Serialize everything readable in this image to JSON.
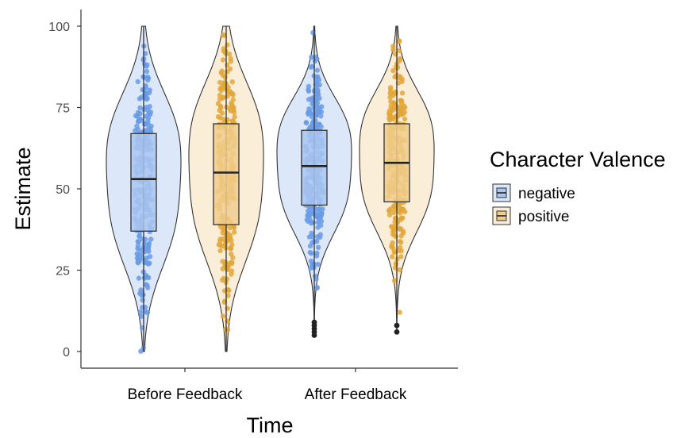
{
  "chart_data": {
    "type": "violin",
    "xlabel": "Time",
    "ylabel": "Estimate",
    "categories": [
      "Before Feedback",
      "After Feedback"
    ],
    "ylim": [
      0,
      100
    ],
    "yticks": [
      0,
      25,
      50,
      75,
      100
    ],
    "legend": {
      "title": "Character Valence",
      "position": "right",
      "entries": [
        "negative",
        "positive"
      ]
    },
    "series": [
      {
        "name": "negative",
        "color": "#6a9be6",
        "fill": "#dce8fa",
        "box_fill": "#a9c6f0",
        "groups": [
          {
            "category": "Before Feedback",
            "min": 0,
            "q1": 37,
            "median": 53,
            "q3": 67,
            "max": 100,
            "outliers": []
          },
          {
            "category": "After Feedback",
            "min": 10,
            "q1": 45,
            "median": 57,
            "q3": 68,
            "max": 100,
            "outliers": [
              5,
              6,
              7,
              8,
              9
            ]
          }
        ]
      },
      {
        "name": "positive",
        "color": "#e2a73a",
        "fill": "#faeed9",
        "box_fill": "#f0cd8c",
        "groups": [
          {
            "category": "Before Feedback",
            "min": 0,
            "q1": 39,
            "median": 55,
            "q3": 70,
            "max": 100,
            "outliers": []
          },
          {
            "category": "After Feedback",
            "min": 10,
            "q1": 46,
            "median": 58,
            "q3": 70,
            "max": 100,
            "outliers": [
              6,
              8
            ]
          }
        ]
      }
    ],
    "grid": false
  }
}
